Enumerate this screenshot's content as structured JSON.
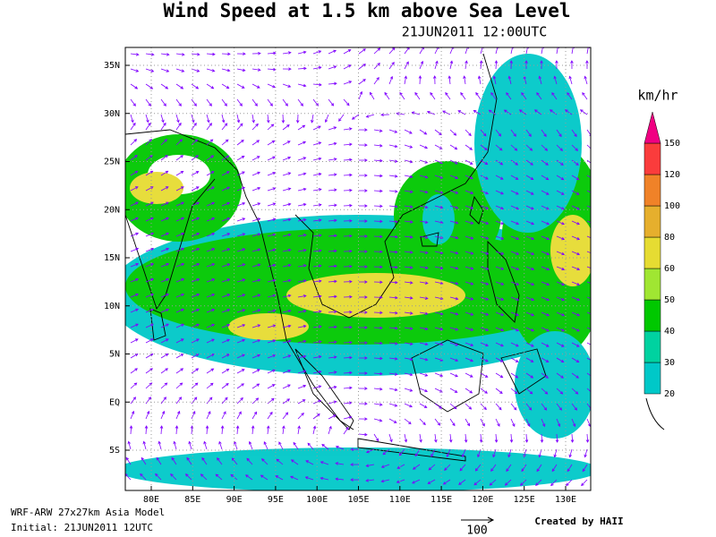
{
  "title": "Wind Speed at 1.5 km above Sea Level",
  "subtitle": "21JUN2011 12:00UTC",
  "lat_labels": [
    "35N",
    "30N",
    "25N",
    "20N",
    "15N",
    "10N",
    "5N",
    "EQ",
    "5S"
  ],
  "lon_labels": [
    "80E",
    "85E",
    "90E",
    "95E",
    "100E",
    "105E",
    "110E",
    "115E",
    "120E",
    "125E",
    "130E"
  ],
  "legend": {
    "unit": "km/hr",
    "levels": [
      "20",
      "30",
      "40",
      "50",
      "60",
      "80",
      "100",
      "120",
      "150"
    ],
    "colors": [
      "#00c8c8",
      "#00d2a0",
      "#00c800",
      "#a0e632",
      "#e6dc32",
      "#e6af2d",
      "#f08228",
      "#fa3c3c",
      "#f00082"
    ]
  },
  "footer": {
    "model": "WRF-ARW 27x27km Asia Model",
    "initial": "Initial: 21JUN2011 12UTC",
    "vector_scale": "100",
    "credit": "Created by HAII"
  }
}
